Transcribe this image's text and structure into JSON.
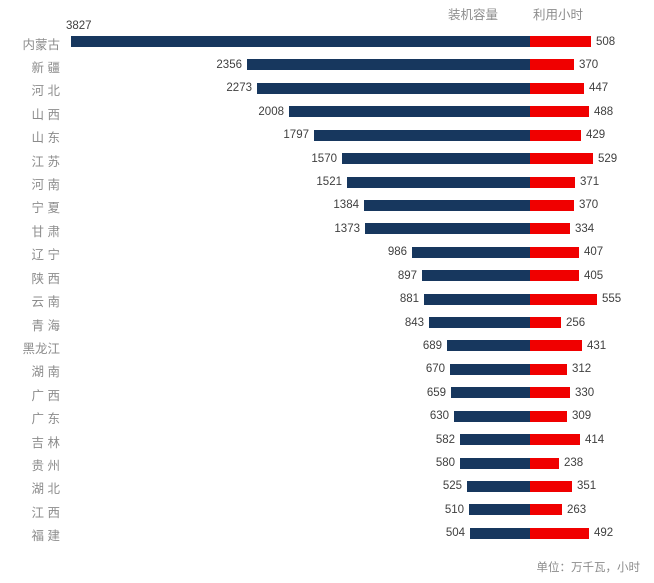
{
  "chart_data": {
    "type": "bar",
    "subtype": "diverging-horizontal-tornado",
    "title": "",
    "categories": [
      "内蒙古",
      "新 疆",
      "河 北",
      "山 西",
      "山 东",
      "江 苏",
      "河 南",
      "宁 夏",
      "甘 肃",
      "辽 宁",
      "陕 西",
      "云 南",
      "青 海",
      "黑龙江",
      "湖 南",
      "广 西",
      "广 东",
      "吉 林",
      "贵 州",
      "湖 北",
      "江 西",
      "福 建"
    ],
    "series": [
      {
        "name": "装机容量",
        "direction": "left",
        "color": "#17375E",
        "values": [
          3827,
          2356,
          2273,
          2008,
          1797,
          1570,
          1521,
          1384,
          1373,
          986,
          897,
          881,
          843,
          689,
          670,
          659,
          630,
          582,
          580,
          525,
          510,
          504
        ]
      },
      {
        "name": "利用小时",
        "direction": "right",
        "color": "#F00000",
        "values": [
          508,
          370,
          447,
          488,
          429,
          529,
          371,
          370,
          334,
          407,
          405,
          555,
          256,
          431,
          312,
          330,
          309,
          414,
          238,
          351,
          263,
          492
        ]
      }
    ],
    "legend_position": "top-right",
    "value_labels": "outside-end",
    "grid": "off",
    "axes": "hidden",
    "unit_note": "单位：万千瓦，小时",
    "text_colors": {
      "category": "#8C8C8C",
      "value": "#404040",
      "legend": "#8C8C8C",
      "note": "#8C8C8C"
    }
  }
}
